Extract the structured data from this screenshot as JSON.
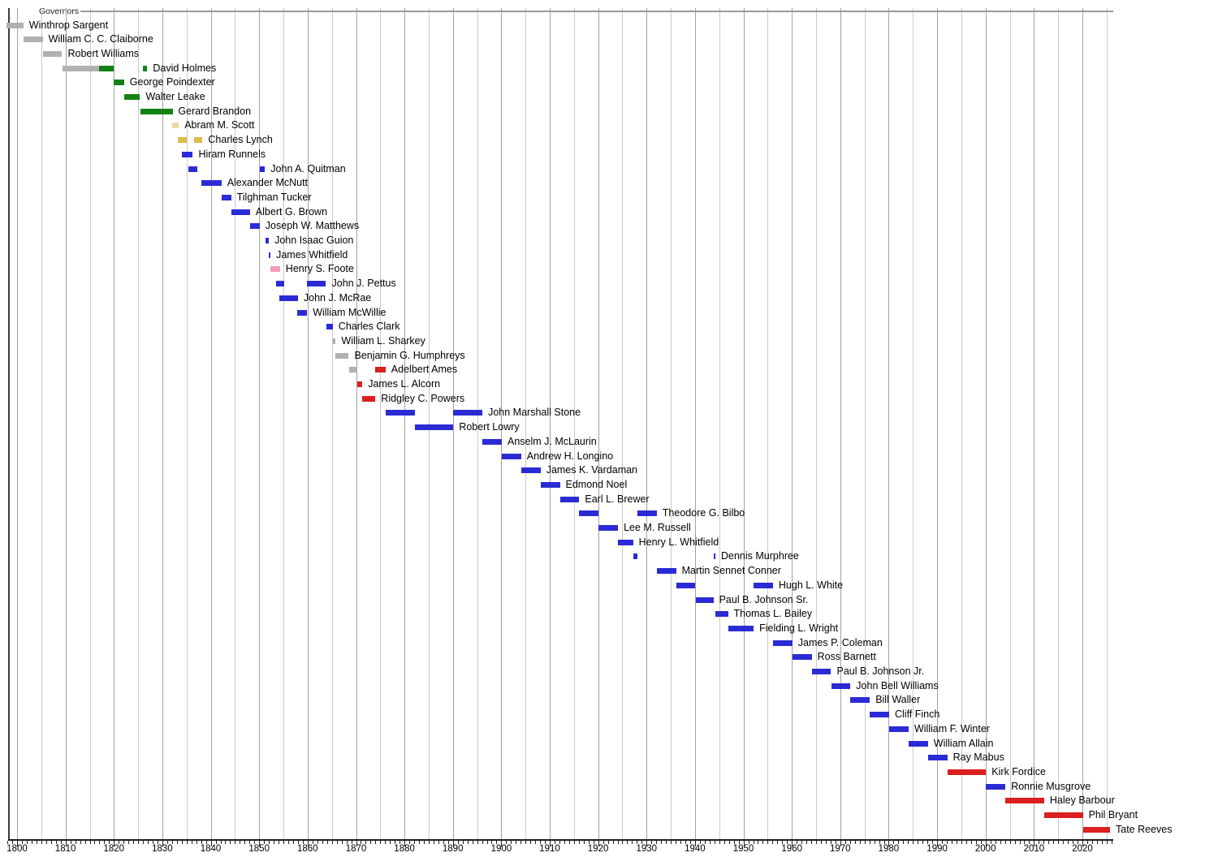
{
  "chart_data": {
    "type": "timeline",
    "title": "Governors",
    "x_axis": {
      "start_year": 1798,
      "end_year": 2026.3,
      "tick_label_years": [
        1800,
        1810,
        1820,
        1830,
        1840,
        1850,
        1860,
        1870,
        1880,
        1890,
        1900,
        1910,
        1920,
        1930,
        1940,
        1950,
        1960,
        1970,
        1980,
        1990,
        2000,
        2010,
        2020
      ],
      "minor_tick_every_years": 1,
      "gridline_every_years": 5,
      "major_gridline_every_years": 10
    },
    "palette": {
      "gray": "#b1b1b1",
      "green": "#148114",
      "khaki": "#edd9a3",
      "gold": "#debc45",
      "blue": "#2b2bd5",
      "pink": "#f2a0b6",
      "red": "#dc1f1f"
    },
    "governors": [
      {
        "name": "Winthrop Sargent",
        "terms": [
          {
            "from": 1797.8,
            "till": 1801.3,
            "color": "gray"
          }
        ]
      },
      {
        "name": "William C. C. Claiborne",
        "terms": [
          {
            "from": 1801.3,
            "till": 1805.3,
            "color": "gray"
          }
        ]
      },
      {
        "name": "Robert Williams",
        "terms": [
          {
            "from": 1805.3,
            "till": 1809.3,
            "color": "gray"
          }
        ]
      },
      {
        "name": "David Holmes",
        "terms": [
          {
            "from": 1809.3,
            "till": 1817.0,
            "color": "gray"
          },
          {
            "from": 1817.0,
            "till": 1820.0,
            "color": "green"
          },
          {
            "from": 1826.0,
            "till": 1826.9,
            "color": "green"
          }
        ]
      },
      {
        "name": "George Poindexter",
        "terms": [
          {
            "from": 1820.0,
            "till": 1822.1,
            "color": "green"
          }
        ]
      },
      {
        "name": "Walter Leake",
        "terms": [
          {
            "from": 1822.1,
            "till": 1825.4,
            "color": "green"
          }
        ]
      },
      {
        "name": "Gerard Brandon",
        "terms": [
          {
            "from": 1825.4,
            "till": 1832.1,
            "color": "green"
          }
        ]
      },
      {
        "name": "Abram M. Scott",
        "terms": [
          {
            "from": 1832.1,
            "till": 1833.4,
            "color": "khaki"
          }
        ]
      },
      {
        "name": "Charles Lynch",
        "terms": [
          {
            "from": 1833.2,
            "till": 1835.0,
            "color": "gold"
          },
          {
            "from": 1836.5,
            "till": 1838.3,
            "color": "gold"
          }
        ]
      },
      {
        "name": "Hiram Runnels",
        "terms": [
          {
            "from": 1834.0,
            "till": 1836.3,
            "color": "blue"
          }
        ]
      },
      {
        "name": "John A. Quitman",
        "terms": [
          {
            "from": 1835.3,
            "till": 1837.3,
            "color": "blue"
          },
          {
            "from": 1850.1,
            "till": 1851.2,
            "color": "blue"
          }
        ]
      },
      {
        "name": "Alexander McNutt",
        "terms": [
          {
            "from": 1838.0,
            "till": 1842.2,
            "color": "blue"
          }
        ]
      },
      {
        "name": "Tilghman Tucker",
        "terms": [
          {
            "from": 1842.2,
            "till": 1844.2,
            "color": "blue"
          }
        ]
      },
      {
        "name": "Albert G. Brown",
        "terms": [
          {
            "from": 1844.2,
            "till": 1848.1,
            "color": "blue"
          }
        ]
      },
      {
        "name": "Joseph W. Matthews",
        "terms": [
          {
            "from": 1848.1,
            "till": 1850.1,
            "color": "blue"
          }
        ]
      },
      {
        "name": "John Isaac Guion",
        "terms": [
          {
            "from": 1851.3,
            "till": 1852.0,
            "color": "blue"
          }
        ]
      },
      {
        "name": "James Whitfield",
        "terms": [
          {
            "from": 1852.0,
            "till": 1852.3,
            "color": "blue"
          }
        ]
      },
      {
        "name": "Henry S. Foote",
        "terms": [
          {
            "from": 1852.3,
            "till": 1854.3,
            "color": "pink"
          }
        ]
      },
      {
        "name": "John J. Pettus",
        "terms": [
          {
            "from": 1853.4,
            "till": 1855.1,
            "color": "blue"
          },
          {
            "from": 1859.9,
            "till": 1863.8,
            "color": "blue"
          }
        ]
      },
      {
        "name": "John J. McRae",
        "terms": [
          {
            "from": 1854.2,
            "till": 1858.0,
            "color": "blue"
          }
        ]
      },
      {
        "name": "William McWillie",
        "terms": [
          {
            "from": 1857.9,
            "till": 1859.9,
            "color": "blue"
          }
        ]
      },
      {
        "name": "Charles Clark",
        "terms": [
          {
            "from": 1863.8,
            "till": 1865.2,
            "color": "blue"
          }
        ]
      },
      {
        "name": "William L. Sharkey",
        "terms": [
          {
            "from": 1865.3,
            "till": 1865.8,
            "color": "gray"
          }
        ]
      },
      {
        "name": "Benjamin G. Humphreys",
        "terms": [
          {
            "from": 1865.8,
            "till": 1868.5,
            "color": "gray"
          }
        ]
      },
      {
        "name": "Adelbert Ames",
        "terms": [
          {
            "from": 1868.5,
            "till": 1870.2,
            "color": "gray"
          },
          {
            "from": 1874.0,
            "till": 1876.1,
            "color": "red"
          }
        ]
      },
      {
        "name": "James L. Alcorn",
        "terms": [
          {
            "from": 1870.2,
            "till": 1871.3,
            "color": "red"
          }
        ]
      },
      {
        "name": "Ridgley C. Powers",
        "terms": [
          {
            "from": 1871.3,
            "till": 1874.0,
            "color": "red"
          }
        ]
      },
      {
        "name": "John Marshall Stone",
        "terms": [
          {
            "from": 1876.1,
            "till": 1882.1,
            "color": "blue"
          },
          {
            "from": 1890.1,
            "till": 1896.1,
            "color": "blue"
          }
        ]
      },
      {
        "name": "Robert Lowry",
        "terms": [
          {
            "from": 1882.1,
            "till": 1890.1,
            "color": "blue"
          }
        ]
      },
      {
        "name": "Anselm J. McLaurin",
        "terms": [
          {
            "from": 1896.1,
            "till": 1900.1,
            "color": "blue"
          }
        ]
      },
      {
        "name": "Andrew H. Longino",
        "terms": [
          {
            "from": 1900.1,
            "till": 1904.1,
            "color": "blue"
          }
        ]
      },
      {
        "name": "James K. Vardaman",
        "terms": [
          {
            "from": 1904.1,
            "till": 1908.1,
            "color": "blue"
          }
        ]
      },
      {
        "name": "Edmond Noel",
        "terms": [
          {
            "from": 1908.1,
            "till": 1912.1,
            "color": "blue"
          }
        ]
      },
      {
        "name": "Earl L. Brewer",
        "terms": [
          {
            "from": 1912.1,
            "till": 1916.1,
            "color": "blue"
          }
        ]
      },
      {
        "name": "Theodore G. Bilbo",
        "terms": [
          {
            "from": 1916.1,
            "till": 1920.1,
            "color": "blue"
          },
          {
            "from": 1928.1,
            "till": 1932.1,
            "color": "blue"
          }
        ]
      },
      {
        "name": "Lee M. Russell",
        "terms": [
          {
            "from": 1920.1,
            "till": 1924.1,
            "color": "blue"
          }
        ]
      },
      {
        "name": "Henry L. Whitfield",
        "terms": [
          {
            "from": 1924.1,
            "till": 1927.2,
            "color": "blue"
          }
        ]
      },
      {
        "name": "Dennis Murphree",
        "terms": [
          {
            "from": 1927.2,
            "till": 1928.1,
            "color": "blue"
          },
          {
            "from": 1943.8,
            "till": 1944.2,
            "color": "blue"
          }
        ]
      },
      {
        "name": "Martin Sennet Conner",
        "terms": [
          {
            "from": 1932.1,
            "till": 1936.1,
            "color": "blue"
          }
        ]
      },
      {
        "name": "Hugh L. White",
        "terms": [
          {
            "from": 1936.1,
            "till": 1940.1,
            "color": "blue"
          },
          {
            "from": 1952.1,
            "till": 1956.1,
            "color": "blue"
          }
        ]
      },
      {
        "name": "Paul B. Johnson Sr.",
        "terms": [
          {
            "from": 1940.1,
            "till": 1943.8,
            "color": "blue"
          }
        ]
      },
      {
        "name": "Thomas L. Bailey",
        "terms": [
          {
            "from": 1944.2,
            "till": 1946.8,
            "color": "blue"
          }
        ]
      },
      {
        "name": "Fielding L. Wright",
        "terms": [
          {
            "from": 1946.8,
            "till": 1952.1,
            "color": "blue"
          }
        ]
      },
      {
        "name": "James P. Coleman",
        "terms": [
          {
            "from": 1956.1,
            "till": 1960.1,
            "color": "blue"
          }
        ]
      },
      {
        "name": "Ross Barnett",
        "terms": [
          {
            "from": 1960.1,
            "till": 1964.1,
            "color": "blue"
          }
        ]
      },
      {
        "name": "Paul B. Johnson Jr.",
        "terms": [
          {
            "from": 1964.1,
            "till": 1968.1,
            "color": "blue"
          }
        ]
      },
      {
        "name": "John Bell Williams",
        "terms": [
          {
            "from": 1968.1,
            "till": 1972.1,
            "color": "blue"
          }
        ]
      },
      {
        "name": "Bill Waller",
        "terms": [
          {
            "from": 1972.1,
            "till": 1976.1,
            "color": "blue"
          }
        ]
      },
      {
        "name": "Cliff Finch",
        "terms": [
          {
            "from": 1976.1,
            "till": 1980.1,
            "color": "blue"
          }
        ]
      },
      {
        "name": "William F. Winter",
        "terms": [
          {
            "from": 1980.1,
            "till": 1984.1,
            "color": "blue"
          }
        ]
      },
      {
        "name": "William Allain",
        "terms": [
          {
            "from": 1984.1,
            "till": 1988.1,
            "color": "blue"
          }
        ]
      },
      {
        "name": "Ray Mabus",
        "terms": [
          {
            "from": 1988.1,
            "till": 1992.1,
            "color": "blue"
          }
        ]
      },
      {
        "name": "Kirk Fordice",
        "terms": [
          {
            "from": 1992.1,
            "till": 2000.1,
            "color": "red"
          }
        ]
      },
      {
        "name": "Ronnie Musgrove",
        "terms": [
          {
            "from": 2000.1,
            "till": 2004.1,
            "color": "blue"
          }
        ]
      },
      {
        "name": "Haley Barbour",
        "terms": [
          {
            "from": 2004.1,
            "till": 2012.1,
            "color": "red"
          }
        ]
      },
      {
        "name": "Phil Bryant",
        "terms": [
          {
            "from": 2012.1,
            "till": 2020.1,
            "color": "red"
          }
        ]
      },
      {
        "name": "Tate Reeves",
        "terms": [
          {
            "from": 2020.1,
            "till": 2025.7,
            "color": "red"
          }
        ]
      }
    ]
  }
}
